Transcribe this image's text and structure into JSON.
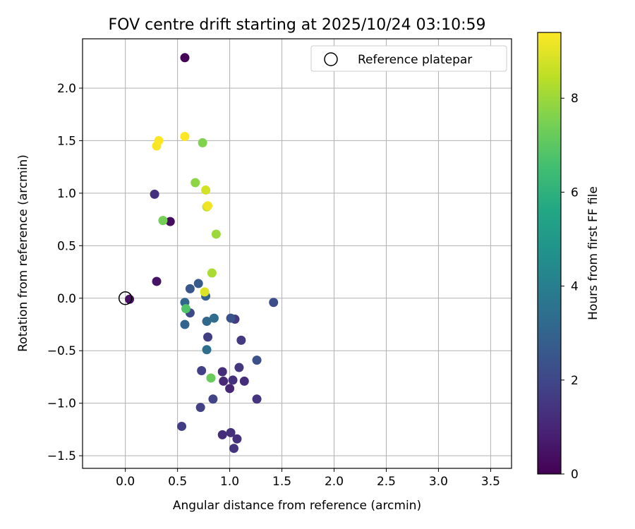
{
  "chart_data": {
    "type": "scatter",
    "title": "FOV centre drift starting at 2025/10/24 03:10:59",
    "xlabel": "Angular distance from reference (arcmin)",
    "ylabel": "Rotation from reference (arcmin)",
    "xlim": [
      -0.41,
      3.7
    ],
    "ylim": [
      -1.62,
      2.47
    ],
    "xticks": [
      0.0,
      0.5,
      1.0,
      1.5,
      2.0,
      2.5,
      3.0,
      3.5
    ],
    "xtick_labels": [
      "0.0",
      "0.5",
      "1.0",
      "1.5",
      "2.0",
      "2.5",
      "3.0",
      "3.5"
    ],
    "yticks": [
      -1.5,
      -1.0,
      -0.5,
      0.0,
      0.5,
      1.0,
      1.5,
      2.0
    ],
    "ytick_labels": [
      "−1.5",
      "−1.0",
      "−0.5",
      "0.0",
      "0.5",
      "1.0",
      "1.5",
      "2.0"
    ],
    "grid": true,
    "legend": {
      "position": "top-right",
      "entries": [
        "Reference platepar"
      ]
    },
    "reference_point": {
      "x": 0.0,
      "y": 0.0
    },
    "colorbar": {
      "label": "Hours from first FF file",
      "min": 0,
      "max": 9.4,
      "ticks": [
        0,
        2,
        4,
        6,
        8
      ],
      "tick_labels": [
        "0",
        "2",
        "4",
        "6",
        "8"
      ],
      "colormap": "viridis"
    },
    "points": [
      {
        "x": 0.57,
        "y": 2.29,
        "hours": 0.05
      },
      {
        "x": 0.04,
        "y": -0.01,
        "hours": 0.4
      },
      {
        "x": 0.3,
        "y": 0.16,
        "hours": 0.5
      },
      {
        "x": 0.43,
        "y": 0.73,
        "hours": 0.3
      },
      {
        "x": 0.28,
        "y": 0.99,
        "hours": 1.3
      },
      {
        "x": 1.0,
        "y": -0.86,
        "hours": 1.0
      },
      {
        "x": 0.94,
        "y": -0.79,
        "hours": 1.1
      },
      {
        "x": 0.93,
        "y": -0.7,
        "hours": 1.2
      },
      {
        "x": 1.03,
        "y": -0.78,
        "hours": 1.3
      },
      {
        "x": 0.93,
        "y": -1.3,
        "hours": 1.2
      },
      {
        "x": 1.01,
        "y": -1.28,
        "hours": 1.3
      },
      {
        "x": 1.07,
        "y": -1.34,
        "hours": 1.3
      },
      {
        "x": 1.04,
        "y": -1.43,
        "hours": 1.4
      },
      {
        "x": 1.14,
        "y": -0.79,
        "hours": 1.2
      },
      {
        "x": 1.26,
        "y": -0.96,
        "hours": 1.4
      },
      {
        "x": 1.09,
        "y": -0.66,
        "hours": 1.5
      },
      {
        "x": 1.11,
        "y": -0.4,
        "hours": 1.6
      },
      {
        "x": 1.05,
        "y": -0.2,
        "hours": 1.6
      },
      {
        "x": 0.79,
        "y": -0.37,
        "hours": 1.7
      },
      {
        "x": 0.54,
        "y": -1.22,
        "hours": 1.7
      },
      {
        "x": 0.72,
        "y": -1.04,
        "hours": 1.8
      },
      {
        "x": 0.73,
        "y": -0.69,
        "hours": 1.8
      },
      {
        "x": 0.84,
        "y": -0.96,
        "hours": 1.9
      },
      {
        "x": 0.62,
        "y": -0.14,
        "hours": 2.1
      },
      {
        "x": 1.42,
        "y": -0.04,
        "hours": 2.2
      },
      {
        "x": 1.26,
        "y": -0.59,
        "hours": 2.3
      },
      {
        "x": 1.01,
        "y": -0.19,
        "hours": 2.4
      },
      {
        "x": 0.62,
        "y": 0.09,
        "hours": 2.5
      },
      {
        "x": 0.7,
        "y": 0.14,
        "hours": 2.7
      },
      {
        "x": 0.77,
        "y": 0.02,
        "hours": 2.9
      },
      {
        "x": 0.57,
        "y": -0.25,
        "hours": 3.0
      },
      {
        "x": 0.57,
        "y": -0.04,
        "hours": 3.1
      },
      {
        "x": 0.78,
        "y": -0.22,
        "hours": 3.2
      },
      {
        "x": 0.85,
        "y": -0.19,
        "hours": 3.3
      },
      {
        "x": 0.78,
        "y": -0.49,
        "hours": 3.4
      },
      {
        "x": 0.58,
        "y": -0.1,
        "hours": 6.8
      },
      {
        "x": 0.82,
        "y": -0.76,
        "hours": 7.2
      },
      {
        "x": 0.36,
        "y": 0.74,
        "hours": 7.4
      },
      {
        "x": 0.74,
        "y": 1.48,
        "hours": 7.6
      },
      {
        "x": 0.67,
        "y": 1.1,
        "hours": 7.8
      },
      {
        "x": 0.87,
        "y": 0.61,
        "hours": 8.0
      },
      {
        "x": 0.83,
        "y": 0.24,
        "hours": 8.2
      },
      {
        "x": 0.78,
        "y": 0.87,
        "hours": 8.6
      },
      {
        "x": 0.77,
        "y": 1.03,
        "hours": 8.8
      },
      {
        "x": 0.76,
        "y": 0.06,
        "hours": 8.9
      },
      {
        "x": 0.79,
        "y": 0.88,
        "hours": 9.2
      },
      {
        "x": 0.3,
        "y": 1.45,
        "hours": 9.3
      },
      {
        "x": 0.32,
        "y": 1.5,
        "hours": 9.4
      },
      {
        "x": 0.57,
        "y": 1.54,
        "hours": 9.4
      }
    ]
  }
}
